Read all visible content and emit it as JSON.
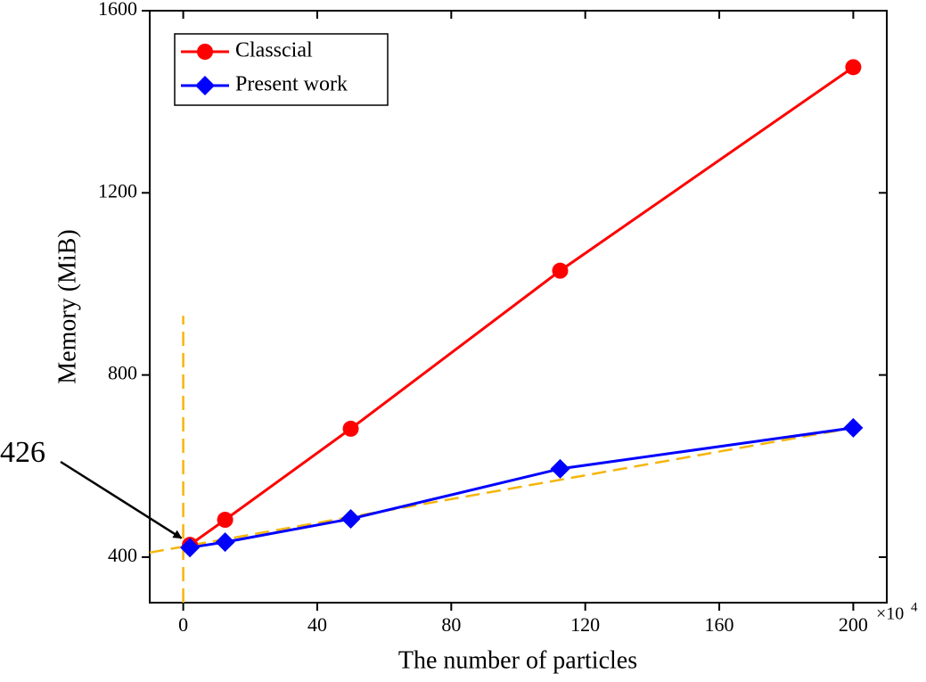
{
  "chart_data": {
    "type": "line",
    "xlabel": "The number of particles",
    "ylabel": "Memory (MiB)",
    "x_multiplier": "×10",
    "x_multiplier_exp": "4",
    "xlim": [
      -10,
      210
    ],
    "xticks": [
      0,
      40,
      80,
      120,
      160,
      200
    ],
    "ylim": [
      300,
      1600
    ],
    "yticks": [
      400,
      800,
      1200,
      1600
    ],
    "legend": "upper left",
    "series": [
      {
        "name": "Classcial",
        "color": "#ff0000",
        "marker": "circle",
        "x": [
          2,
          12.5,
          50,
          112.5,
          200
        ],
        "values": [
          427,
          482,
          682,
          1029,
          1476
        ]
      },
      {
        "name": "Present work",
        "color": "#0000ff",
        "marker": "diamond",
        "x": [
          2,
          12.5,
          50,
          112.5,
          200
        ],
        "values": [
          421,
          433,
          484,
          594,
          684
        ]
      }
    ],
    "fit_line": {
      "color": "#f5b50a",
      "x": [
        -10,
        200
      ],
      "values": [
        410,
        684
      ]
    },
    "vertical_line": {
      "color": "#f5b50a",
      "x": 0,
      "y": [
        300,
        930
      ]
    },
    "annotation": {
      "text": "426",
      "x": 0,
      "y": 426
    }
  }
}
